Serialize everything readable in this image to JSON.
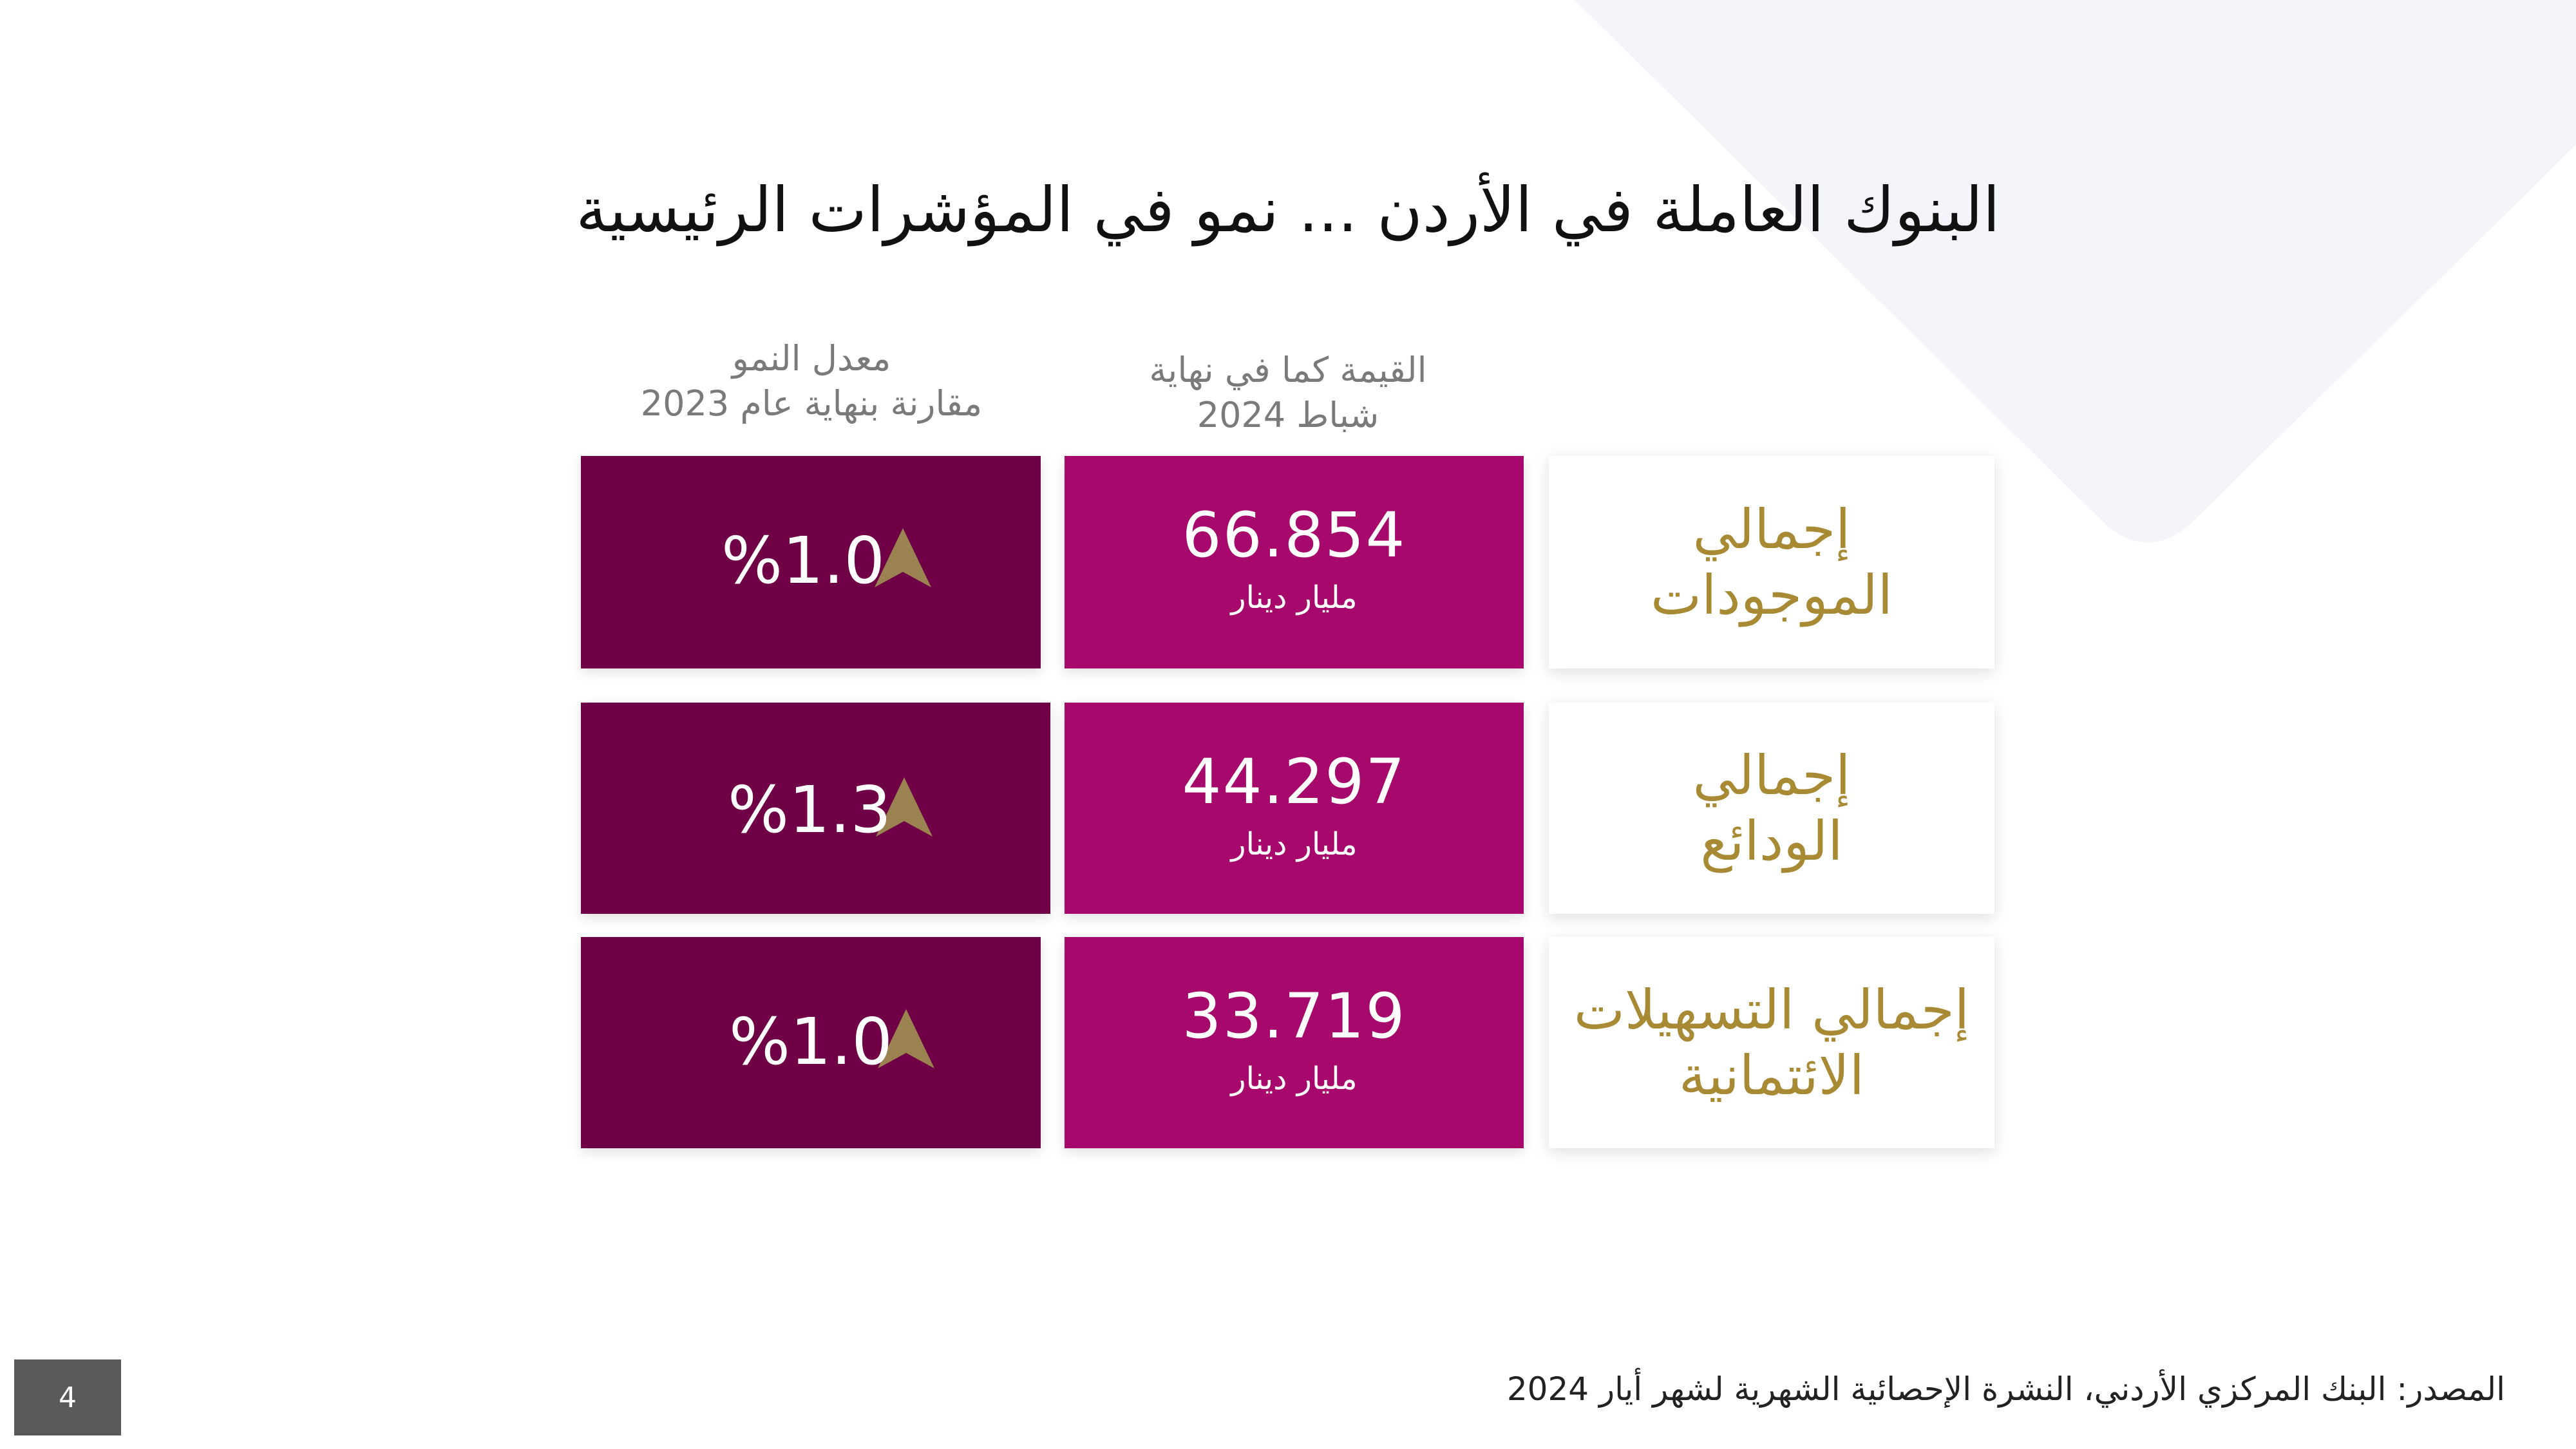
{
  "title": "البنوك العاملة في الأردن ... نمو في المؤشرات الرئيسية",
  "columns": {
    "value_header_line1": "القيمة كما في نهاية",
    "value_header_line2": "شباط 2024",
    "growth_header_line1": "معدل النمو",
    "growth_header_line2": "مقارنة بنهاية عام 2023"
  },
  "rows": [
    {
      "label_line1": "إجمالي",
      "label_line2": "الموجودات",
      "value": "66.854",
      "unit": "مليار دينار",
      "growth": "%1.0"
    },
    {
      "label_line1": "إجمالي",
      "label_line2": "الودائع",
      "value": "44.297",
      "unit": "مليار دينار",
      "growth": "%1.3"
    },
    {
      "label_line1": "إجمالي التسهيلات",
      "label_line2": "الائتمانية",
      "value": "33.719",
      "unit": "مليار دينار",
      "growth": "%1.0"
    }
  ],
  "footer": {
    "source": "المصدر: البنك المركزي الأردني، النشرة الإحصائية الشهرية لشهر أيار 2024",
    "page_number": "4"
  },
  "colors": {
    "value_card": "#a6096b",
    "growth_card": "#6f0046",
    "label_text": "#a88a35",
    "arrow": "#9a8350",
    "background_shape": "#f4f5fa"
  },
  "icons": {
    "growth": "up-arrow-icon"
  }
}
